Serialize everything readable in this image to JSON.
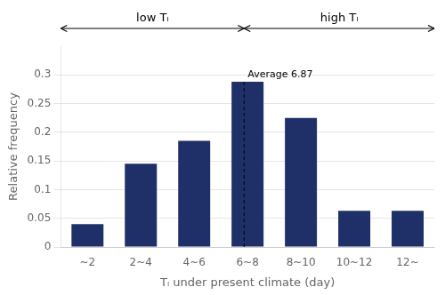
{
  "chart_data": {
    "type": "bar",
    "categories": [
      "~2",
      "2~4",
      "4~6",
      "6~8",
      "8~10",
      "10~12",
      "12~"
    ],
    "values": [
      0.04,
      0.145,
      0.185,
      0.288,
      0.225,
      0.063,
      0.063
    ],
    "color": "#1f3068",
    "xlabel": "Tₗ under present climate (day)",
    "ylabel": "Relative frequency",
    "ylim": [
      0,
      0.35
    ],
    "yticks": [
      0,
      0.05,
      0.1,
      0.15,
      0.2,
      0.25,
      0.3
    ],
    "grid": true,
    "average_value": 6.87,
    "average_label": "Average 6.87",
    "low_label": "low Tₗ",
    "high_label": "high Tₗ"
  }
}
